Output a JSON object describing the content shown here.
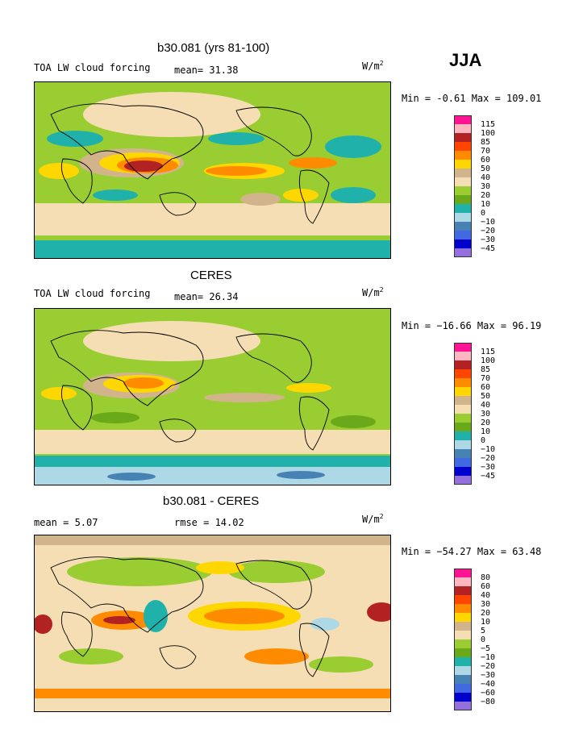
{
  "season": "JJA",
  "units_base": "W/m",
  "units_exp": "2",
  "panels": [
    {
      "title": "b30.081 (yrs 81-100)",
      "variable": "TOA LW cloud forcing",
      "stat_left": "",
      "stat": "mean=  31.38",
      "minmax": "Min =  -0.61 Max = 109.01",
      "levels": [
        "115",
        "100",
        "85",
        "70",
        "60",
        "50",
        "40",
        "30",
        "20",
        "10",
        "0",
        "−10",
        "−20",
        "−30",
        "−45"
      ]
    },
    {
      "title": "CERES",
      "variable": "TOA LW cloud forcing",
      "stat_left": "",
      "stat": "mean=  26.34",
      "minmax": "Min = −16.66 Max =  96.19",
      "levels": [
        "115",
        "100",
        "85",
        "70",
        "60",
        "50",
        "40",
        "30",
        "20",
        "10",
        "0",
        "−10",
        "−20",
        "−30",
        "−45"
      ]
    },
    {
      "title": "b30.081 - CERES",
      "variable": "",
      "stat_left": "mean =    5.07",
      "stat": "rmse =  14.02",
      "minmax": "Min = −54.27 Max =  63.48",
      "levels": [
        "80",
        "60",
        "40",
        "30",
        "20",
        "10",
        "5",
        "0",
        "−5",
        "−10",
        "−20",
        "−30",
        "−40",
        "−60",
        "−80"
      ]
    }
  ],
  "colors": {
    "palette": [
      "#ff1493",
      "#ffb6c1",
      "#b22222",
      "#ff4500",
      "#ff8c00",
      "#ffd700",
      "#d2b48c",
      "#f5deb3",
      "#9acd32",
      "#6aaa1a",
      "#20b2aa",
      "#add8e6",
      "#4682b4",
      "#4169e1",
      "#0000cd",
      "#9370db"
    ]
  },
  "chart_data": [
    {
      "type": "heatmap",
      "title": "b30.081 (yrs 81-100)",
      "subtitle": "TOA LW cloud forcing",
      "mean": 31.38,
      "min": -0.61,
      "max": 109.01,
      "units": "W/m2",
      "contour_levels": [
        115,
        100,
        85,
        70,
        60,
        50,
        40,
        30,
        20,
        10,
        0,
        -10,
        -20,
        -30,
        -45
      ]
    },
    {
      "type": "heatmap",
      "title": "CERES",
      "subtitle": "TOA LW cloud forcing",
      "mean": 26.34,
      "min": -16.66,
      "max": 96.19,
      "units": "W/m2",
      "contour_levels": [
        115,
        100,
        85,
        70,
        60,
        50,
        40,
        30,
        20,
        10,
        0,
        -10,
        -20,
        -30,
        -45
      ]
    },
    {
      "type": "heatmap",
      "title": "b30.081 - CERES",
      "mean": 5.07,
      "rmse": 14.02,
      "min": -54.27,
      "max": 63.48,
      "units": "W/m2",
      "contour_levels": [
        80,
        60,
        40,
        30,
        20,
        10,
        5,
        0,
        -5,
        -10,
        -20,
        -30,
        -40,
        -60,
        -80
      ]
    }
  ]
}
